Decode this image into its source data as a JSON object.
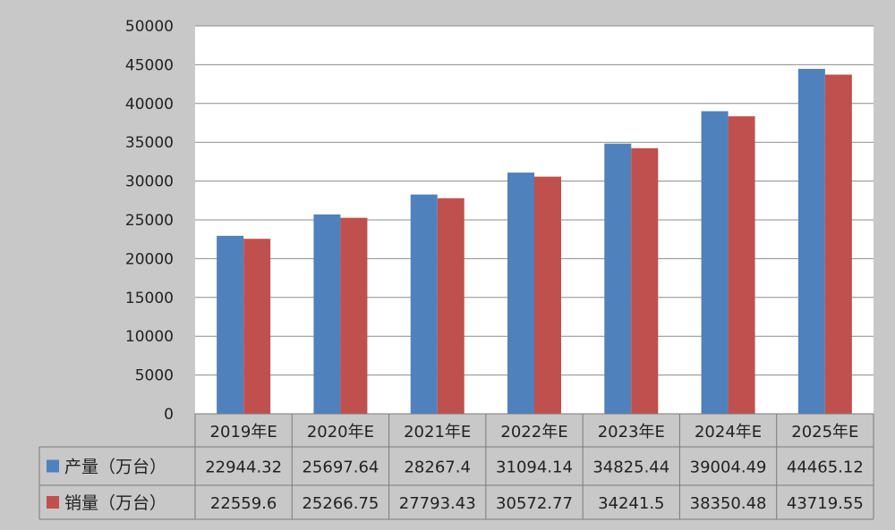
{
  "chart_data": {
    "type": "bar",
    "categories": [
      "2019年E",
      "2020年E",
      "2021年E",
      "2022年E",
      "2023年E",
      "2024年E",
      "2025年E"
    ],
    "series": [
      {
        "name": "产量（万台）",
        "color": "#4f81bd",
        "values": [
          22944.32,
          25697.64,
          28267.4,
          31094.14,
          34825.44,
          39004.49,
          44465.12
        ],
        "labels": [
          "22944.32",
          "25697.64",
          "28267.4",
          "31094.14",
          "34825.44",
          "39004.49",
          "44465.12"
        ]
      },
      {
        "name": "销量（万台）",
        "color": "#c0504d",
        "values": [
          22559.6,
          25266.75,
          27793.43,
          30572.77,
          34241.5,
          38350.48,
          43719.55
        ],
        "labels": [
          "22559.6",
          "25266.75",
          "27793.43",
          "30572.77",
          "34241.5",
          "38350.48",
          "43719.55"
        ]
      }
    ],
    "ylim": [
      0,
      50000
    ],
    "yticks": [
      0,
      5000,
      10000,
      15000,
      20000,
      25000,
      30000,
      35000,
      40000,
      45000,
      50000
    ],
    "grid": true,
    "legend": "data-table-below",
    "title": "",
    "xlabel": "",
    "ylabel": ""
  }
}
